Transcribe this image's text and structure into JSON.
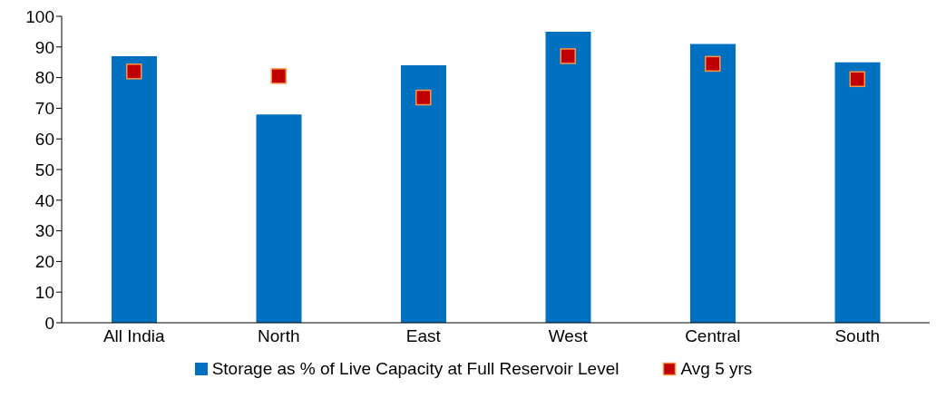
{
  "chart_data": {
    "type": "bar",
    "categories": [
      "All India",
      "North",
      "East",
      "West",
      "Central",
      "South"
    ],
    "series": [
      {
        "name": "Storage as % of Live Capacity at Full Reservoir Level",
        "color": "#0070c0",
        "values": [
          87,
          68,
          84,
          95,
          91,
          85
        ]
      },
      {
        "name": "Avg 5 yrs",
        "type": "scatter",
        "color": "#c00000",
        "values": [
          82,
          80.5,
          73.5,
          87,
          84.5,
          79.5
        ]
      }
    ],
    "ylim": [
      0,
      100
    ],
    "yticks": [
      0,
      10,
      20,
      30,
      40,
      50,
      60,
      70,
      80,
      90,
      100
    ],
    "grid": false,
    "legend": "bottom",
    "marker": "square"
  }
}
